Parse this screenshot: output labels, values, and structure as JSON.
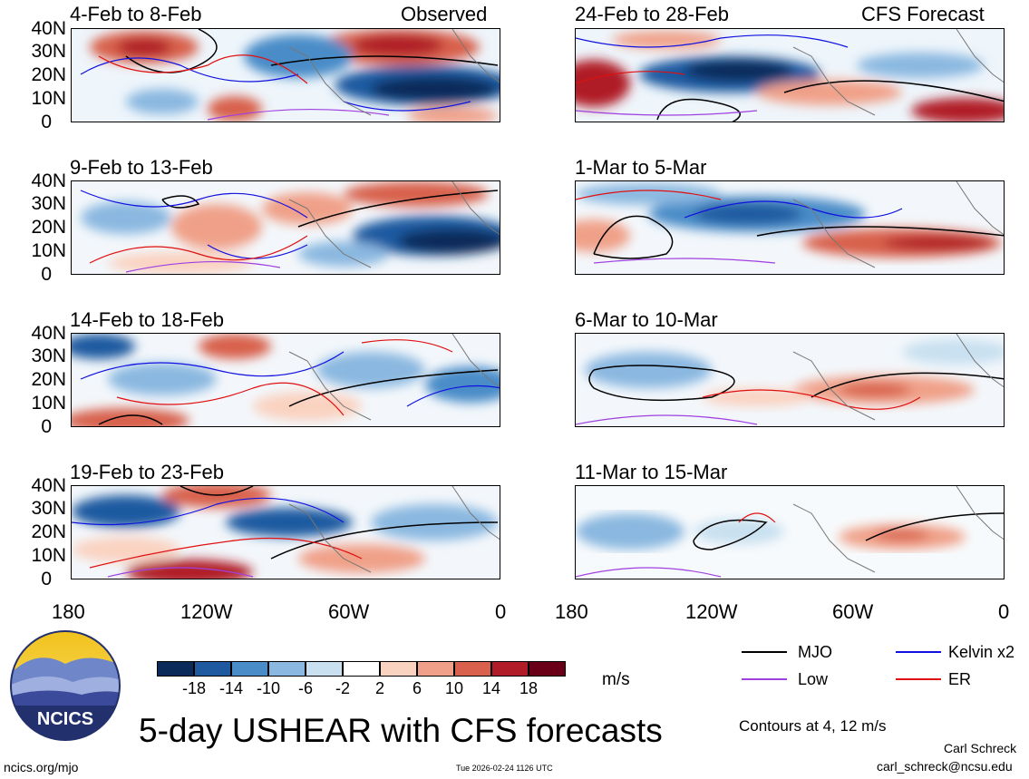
{
  "header": {
    "obs_label": "Observed",
    "fcst_label": "CFS Forecast"
  },
  "panels_left": [
    {
      "period": "4-Feb to 8-Feb"
    },
    {
      "period": "9-Feb to 13-Feb"
    },
    {
      "period": "14-Feb to 18-Feb"
    },
    {
      "period": "19-Feb to 23-Feb"
    }
  ],
  "panels_right": [
    {
      "period": "24-Feb to 28-Feb"
    },
    {
      "period": "1-Mar to 5-Mar"
    },
    {
      "period": "6-Mar to 10-Mar"
    },
    {
      "period": "11-Mar to 15-Mar"
    }
  ],
  "y_ticks": [
    "40N",
    "30N",
    "20N",
    "10N",
    "0"
  ],
  "x_ticks": [
    "180",
    "120W",
    "60W",
    "0"
  ],
  "colorbar": {
    "unit": "m/s",
    "ticks": [
      "-18",
      "-14",
      "-10",
      "-6",
      "-2",
      "2",
      "6",
      "10",
      "14",
      "18"
    ],
    "colors": [
      "#0a2a5a",
      "#1f5aa0",
      "#4a8cc8",
      "#8ab8e0",
      "#c8e0f0",
      "#ffffff",
      "#fad2c0",
      "#f0a088",
      "#d8604c",
      "#b01c28",
      "#6a0018"
    ]
  },
  "legend": {
    "mjo": "MJO",
    "kelvin": "Kelvin x2",
    "low": "Low",
    "er": "ER",
    "contours_note": "Contours at 4, 12 m/s",
    "colors": {
      "mjo": "#000000",
      "kelvin": "#1010e0",
      "low": "#a040e0",
      "er": "#e01010"
    }
  },
  "title": "5-day USHEAR with CFS forecasts",
  "logo_text": "NCICS",
  "footer": {
    "url": "ncics.org/mjo",
    "timestamp": "Tue 2026-02-24 1126 UTC",
    "author": "Carl Schreck",
    "email": "carl_schreck@ncsu.edu"
  }
}
